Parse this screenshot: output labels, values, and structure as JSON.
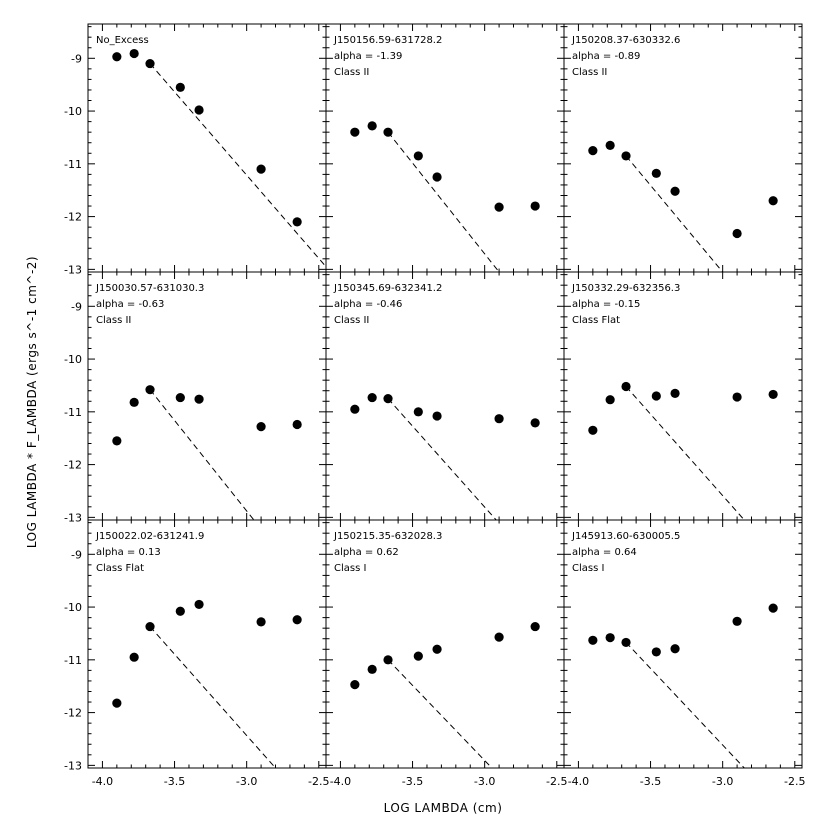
{
  "chart_data": {
    "type": "scatter",
    "xlabel": "LOG LAMBDA (cm)",
    "ylabel": "LOG LAMBDA * F_LAMBDA (ergs s^-1 cm^-2)",
    "xlim": [
      -4.1,
      -2.45
    ],
    "ylim": [
      -13.05,
      -8.35
    ],
    "xticks": [
      -4.0,
      -3.5,
      -3.0,
      -2.5
    ],
    "xtick_labels": [
      "-4.0",
      "-3.5",
      "-3.0",
      "-2.5"
    ],
    "yticks": [
      -9,
      -10,
      -11,
      -12,
      -13
    ],
    "ytick_labels": [
      "-9",
      "-10",
      "-11",
      "-12",
      "-13"
    ],
    "x": [
      -3.9,
      -3.78,
      -3.67,
      -3.46,
      -3.33,
      -2.9,
      -2.65
    ],
    "panels": [
      {
        "name": "No_Excess",
        "alpha": "",
        "class": "",
        "y": [
          -8.97,
          -8.91,
          -9.1,
          -9.55,
          -9.98,
          -11.1,
          -12.1
        ],
        "line": {
          "x": [
            -3.67,
            -2.45
          ],
          "y": [
            -9.1,
            -12.95
          ]
        }
      },
      {
        "name": "J150156.59-631728.2",
        "alpha": "alpha = -1.39",
        "class": "Class II",
        "y": [
          -10.4,
          -10.28,
          -10.4,
          -10.85,
          -11.25,
          -11.82,
          -11.8
        ],
        "line": {
          "x": [
            -3.67,
            -2.9
          ],
          "y": [
            -10.4,
            -13.05
          ]
        }
      },
      {
        "name": "J150208.37-630332.6",
        "alpha": "alpha = -0.89",
        "class": "Class II",
        "y": [
          -10.75,
          -10.65,
          -10.85,
          -11.18,
          -11.52,
          -12.32,
          -11.7
        ],
        "line": {
          "x": [
            -3.67,
            -3.0
          ],
          "y": [
            -10.85,
            -13.05
          ]
        }
      },
      {
        "name": "J150030.57-631030.3",
        "alpha": "alpha = -0.63",
        "class": "Class II",
        "y": [
          -11.55,
          -10.82,
          -10.58,
          -10.73,
          -10.76,
          -11.28,
          -11.24
        ],
        "line": {
          "x": [
            -3.67,
            -2.95
          ],
          "y": [
            -10.58,
            -13.05
          ]
        }
      },
      {
        "name": "J150345.69-632341.2",
        "alpha": "alpha = -0.46",
        "class": "Class II",
        "y": [
          -10.95,
          -10.73,
          -10.75,
          -11.0,
          -11.08,
          -11.13,
          -11.21
        ],
        "line": {
          "x": [
            -3.67,
            -2.92
          ],
          "y": [
            -10.75,
            -13.05
          ]
        }
      },
      {
        "name": "J150332.29-632356.3",
        "alpha": "alpha = -0.15",
        "class": "Class Flat",
        "y": [
          -11.35,
          -10.77,
          -10.52,
          -10.7,
          -10.65,
          -10.72,
          -10.67
        ],
        "line": {
          "x": [
            -3.67,
            -2.85
          ],
          "y": [
            -10.52,
            -13.05
          ]
        }
      },
      {
        "name": "J150022.02-631241.9",
        "alpha": "alpha = 0.13",
        "class": "Class Flat",
        "y": [
          -11.82,
          -10.95,
          -10.37,
          -10.08,
          -9.95,
          -10.28,
          -10.24
        ],
        "line": {
          "x": [
            -3.67,
            -2.8
          ],
          "y": [
            -10.37,
            -13.05
          ]
        }
      },
      {
        "name": "J150215.35-632028.3",
        "alpha": "alpha = 0.62",
        "class": "Class I",
        "y": [
          -11.47,
          -11.18,
          -11.0,
          -10.93,
          -10.8,
          -10.57,
          -10.37
        ],
        "line": {
          "x": [
            -3.67,
            -2.95
          ],
          "y": [
            -11.0,
            -13.05
          ]
        }
      },
      {
        "name": "J145913.60-630005.5",
        "alpha": "alpha = 0.64",
        "class": "Class I",
        "y": [
          -10.63,
          -10.58,
          -10.67,
          -10.85,
          -10.79,
          -10.27,
          -10.02
        ],
        "line": {
          "x": [
            -3.67,
            -2.85
          ],
          "y": [
            -10.67,
            -13.05
          ]
        }
      }
    ]
  }
}
